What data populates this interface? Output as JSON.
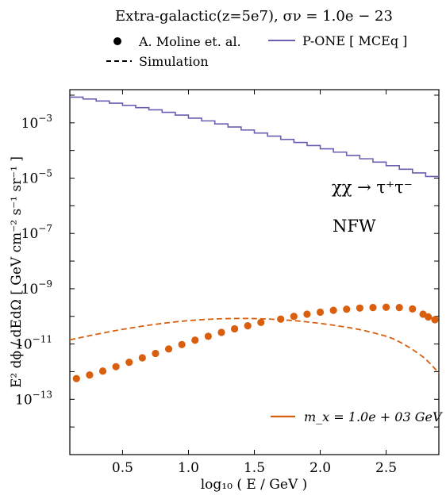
{
  "chart_data": {
    "type": "line",
    "title": "Extra-galactic(z=5e7), σν = 1.0e − 23",
    "xlabel": "log₁₀ ( E / GeV )",
    "ylabel": "E² dϕ / dEdΩ [ GeV cm⁻² s⁻¹ sr⁻¹ ]",
    "xlim": [
      0.1,
      2.9
    ],
    "ylim_log10": [
      -15,
      -1.8
    ],
    "y_scale": "log",
    "x_ticks": [
      "0.5",
      "1.0",
      "1.5",
      "2.0",
      "2.5"
    ],
    "y_ticks": [
      {
        "base": "10",
        "exp": "−3"
      },
      {
        "base": "10",
        "exp": "−5"
      },
      {
        "base": "10",
        "exp": "−7"
      },
      {
        "base": "10",
        "exp": "−9"
      },
      {
        "base": "10",
        "exp": "−11"
      },
      {
        "base": "10",
        "exp": "−13"
      }
    ],
    "legend_top": {
      "placement": "above plot",
      "entries": [
        {
          "marker": "dot",
          "label": "A. Moline et. al."
        },
        {
          "marker": "solid-line",
          "label": "P-ONE [ MCEq ]"
        },
        {
          "marker": "dashed-line",
          "label": "Simulation"
        }
      ]
    },
    "legend_bottom": {
      "placement": "bottom-right",
      "label": "m_x = 1.0e + 03 GeV"
    },
    "annotations": {
      "process": "χχ → τ⁺τ⁻",
      "profile": "NFW"
    },
    "series": [
      {
        "name": "P-ONE [ MCEq ]",
        "kind": "step",
        "color": "#6a5fb0",
        "edges": [
          0.1,
          0.2,
          0.3,
          0.4,
          0.5,
          0.6,
          0.7,
          0.8,
          0.9,
          1.0,
          1.1,
          1.2,
          1.3,
          1.4,
          1.5,
          1.6,
          1.7,
          1.8,
          1.9,
          2.0,
          2.1,
          2.2,
          2.3,
          2.4,
          2.5,
          2.6,
          2.7,
          2.8,
          2.9
        ],
        "log10_values": [
          -2.07,
          -2.14,
          -2.21,
          -2.29,
          -2.37,
          -2.45,
          -2.53,
          -2.62,
          -2.72,
          -2.83,
          -2.93,
          -3.04,
          -3.15,
          -3.26,
          -3.37,
          -3.48,
          -3.6,
          -3.71,
          -3.82,
          -3.94,
          -4.06,
          -4.18,
          -4.3,
          -4.42,
          -4.55,
          -4.68,
          -4.81,
          -4.94
        ]
      },
      {
        "name": "Simulation",
        "kind": "dashed-line",
        "color": "#d95f0e",
        "x": [
          0.1,
          0.3,
          0.5,
          0.7,
          0.9,
          1.1,
          1.3,
          1.5,
          1.7,
          1.9,
          2.1,
          2.3,
          2.5,
          2.6,
          2.7,
          2.8,
          2.9
        ],
        "log10_values": [
          -10.85,
          -10.65,
          -10.47,
          -10.32,
          -10.2,
          -10.12,
          -10.08,
          -10.08,
          -10.12,
          -10.2,
          -10.32,
          -10.48,
          -10.72,
          -10.92,
          -11.2,
          -11.55,
          -12.05
        ]
      },
      {
        "name": "A. Moline et. al.",
        "kind": "scatter",
        "color": "#d95f0e",
        "x": [
          0.15,
          0.25,
          0.35,
          0.45,
          0.55,
          0.65,
          0.75,
          0.85,
          0.95,
          1.05,
          1.15,
          1.25,
          1.35,
          1.45,
          1.55,
          1.7,
          1.8,
          1.9,
          2.0,
          2.1,
          2.2,
          2.3,
          2.4,
          2.5,
          2.6,
          2.7,
          2.78,
          2.82,
          2.87
        ],
        "log10_values": [
          -12.25,
          -12.12,
          -11.98,
          -11.82,
          -11.66,
          -11.5,
          -11.34,
          -11.18,
          -11.02,
          -10.86,
          -10.72,
          -10.58,
          -10.45,
          -10.34,
          -10.22,
          -10.1,
          -10.0,
          -9.92,
          -9.85,
          -9.78,
          -9.74,
          -9.7,
          -9.68,
          -9.67,
          -9.68,
          -9.73,
          -9.92,
          -10.02,
          -10.12
        ]
      }
    ]
  }
}
